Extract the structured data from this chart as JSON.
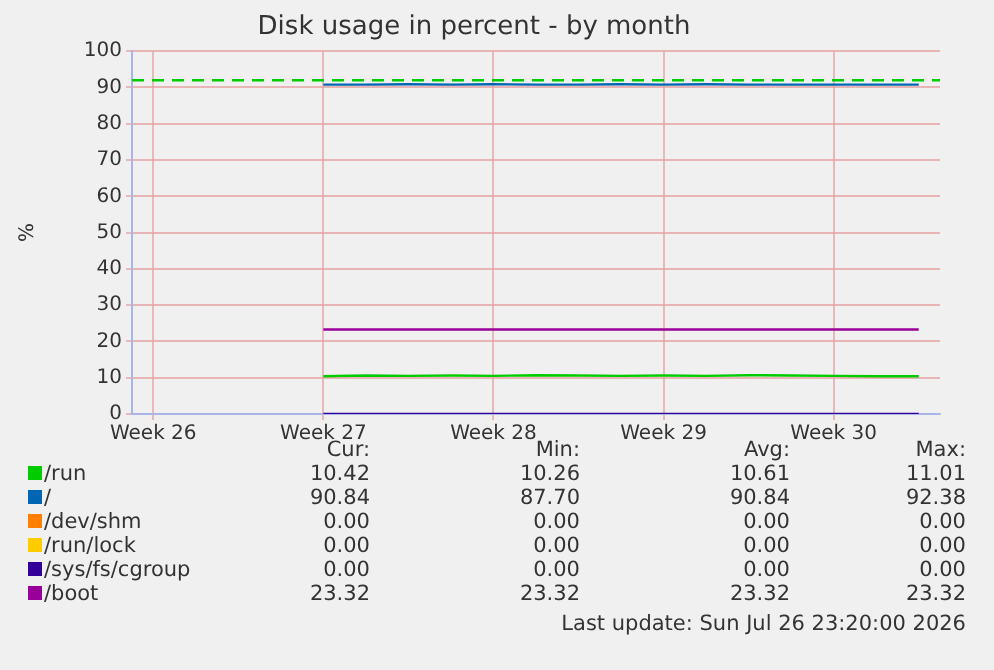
{
  "chart_data": {
    "type": "line",
    "title": "Disk usage in percent - by month",
    "ylabel": "%",
    "categories": [
      "Week 26",
      null,
      null,
      null,
      "Week 27",
      null,
      null,
      null,
      "Week 28",
      null,
      null,
      null,
      "Week 29",
      null,
      null,
      null,
      "Week 30",
      null,
      null
    ],
    "ylim": [
      0,
      100
    ],
    "yticks": [
      0,
      10,
      20,
      30,
      40,
      50,
      60,
      70,
      80,
      90,
      100
    ],
    "grid": true,
    "legend": "bottom",
    "marker": "none",
    "line_style": "solid",
    "series": [
      {
        "name": "/run",
        "color": "#00cc00",
        "values": [
          null,
          null,
          null,
          null,
          10.4,
          10.6,
          10.5,
          10.6,
          10.5,
          10.7,
          10.6,
          10.5,
          10.6,
          10.5,
          10.7,
          10.6,
          10.5,
          10.4,
          10.4
        ]
      },
      {
        "name": "/",
        "color": "#0066b3",
        "values": [
          null,
          null,
          null,
          null,
          90.8,
          90.8,
          90.9,
          90.8,
          90.9,
          90.8,
          90.8,
          90.9,
          90.8,
          90.9,
          90.8,
          90.8,
          90.8,
          90.8,
          90.8
        ]
      },
      {
        "name": "/dev/shm",
        "color": "#ff8000",
        "values": [
          null,
          null,
          null,
          null,
          null,
          null,
          null,
          null,
          null,
          null,
          null,
          null,
          null,
          null,
          null,
          null,
          null,
          null,
          null
        ]
      },
      {
        "name": "/run/lock",
        "color": "#ffcc00",
        "values": [
          null,
          null,
          null,
          null,
          null,
          null,
          null,
          null,
          null,
          null,
          null,
          null,
          null,
          null,
          null,
          null,
          null,
          null,
          null
        ]
      },
      {
        "name": "/sys/fs/cgroup",
        "color": "#330099",
        "values": [
          null,
          null,
          null,
          null,
          0,
          0,
          0,
          0,
          0,
          0,
          0,
          0,
          0,
          0,
          0,
          0,
          0,
          0,
          0
        ]
      },
      {
        "name": "/boot",
        "color": "#990099",
        "values": [
          null,
          null,
          null,
          null,
          23.3,
          23.3,
          23.3,
          23.3,
          23.3,
          23.3,
          23.3,
          23.3,
          23.3,
          23.3,
          23.3,
          23.3,
          23.3,
          23.3,
          23.3
        ]
      }
    ],
    "ref_lines": [
      {
        "axis": "y",
        "value": 92,
        "color": "#00cc00",
        "line_style": "dashed"
      }
    ],
    "annotations": [
      "Cur:",
      "Min:",
      "Avg:",
      "Max:",
      "10.42",
      "10.26",
      "10.61",
      "11.01",
      "90.84",
      "87.70",
      "90.84",
      "92.38",
      "0.00",
      "0.00",
      "0.00",
      "0.00",
      "0.00",
      "0.00",
      "0.00",
      "0.00",
      "0.00",
      "0.00",
      "0.00",
      "0.00",
      "23.32",
      "23.32",
      "23.32",
      "23.32",
      "Last update: Sun Jul 26 23:20:00 2026"
    ]
  }
}
